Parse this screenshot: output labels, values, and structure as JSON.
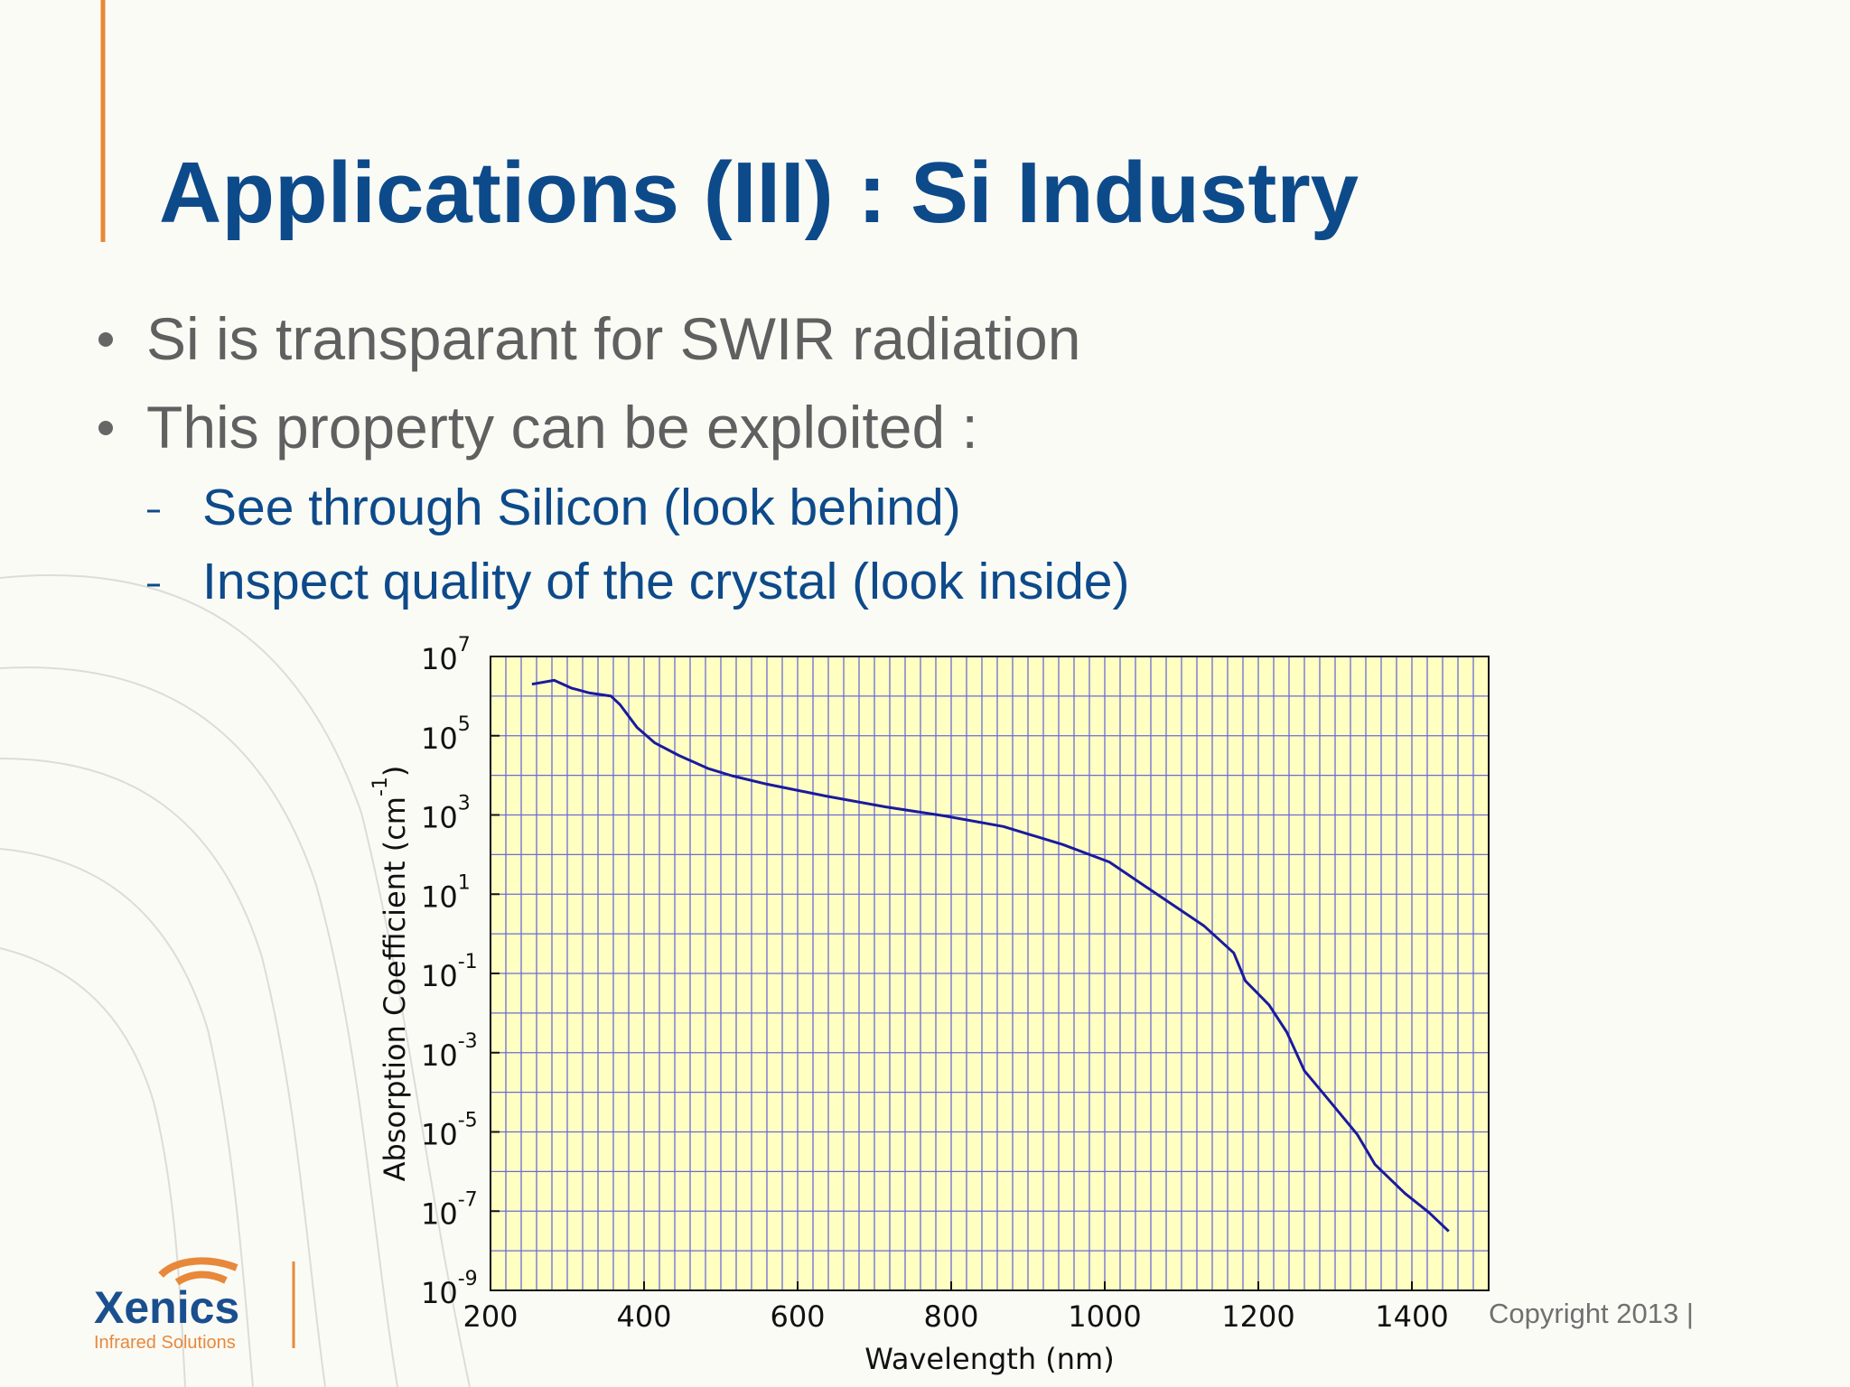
{
  "header": {
    "title": "Applications (III) : Si Industry"
  },
  "bullets": [
    "Si is transparant for SWIR radiation",
    "This property can be exploited :"
  ],
  "sub_bullets": [
    "See through Silicon (look behind)",
    "Inspect quality of the crystal (look inside)"
  ],
  "logo": {
    "name": "Xenics",
    "tagline": "Infrared Solutions"
  },
  "footer": {
    "copyright": "Copyright 2013 |"
  },
  "chart_data": {
    "type": "line",
    "log_y": true,
    "grid": true,
    "xlabel": "Wavelength (nm)",
    "ylabel": {
      "text": "Absorption Coefficient (cm",
      "sup": "-1",
      "end": ")"
    },
    "xlim": [
      200,
      1500
    ],
    "xticks": [
      200,
      400,
      600,
      800,
      1000,
      1200,
      1400
    ],
    "ylim": [
      1e-09,
      10000000.0
    ],
    "yticks": [
      {
        "value": 1e-09,
        "label": "10",
        "sup": "-9"
      },
      {
        "value": 1e-07,
        "label": "10",
        "sup": "-7"
      },
      {
        "value": 1e-05,
        "label": "10",
        "sup": "-5"
      },
      {
        "value": 0.001,
        "label": "10",
        "sup": "-3"
      },
      {
        "value": 0.1,
        "label": "10",
        "sup": "-1"
      },
      {
        "value": 10,
        "label": "10",
        "sup": "1"
      },
      {
        "value": 1000,
        "label": "10",
        "sup": "3"
      },
      {
        "value": 100000,
        "label": "10",
        "sup": "5"
      },
      {
        "value": 10000000,
        "label": "10",
        "sup": "7"
      }
    ],
    "x": [
      254,
      283,
      305,
      329,
      357,
      369,
      391,
      414,
      445,
      483,
      514,
      560,
      637,
      714,
      791,
      868,
      945,
      1006,
      1068,
      1129,
      1168,
      1183,
      1214,
      1237,
      1260,
      1291,
      1329,
      1352,
      1391,
      1422,
      1448
    ],
    "series": [
      {
        "color": "#1a1a9e",
        "values": [
          2000000.0,
          2500000.0,
          1600000.0,
          1200000.0,
          1000000.0,
          600000.0,
          160000.0,
          66000.0,
          32000.0,
          15000.0,
          9800.0,
          6000.0,
          3000.0,
          1600.0,
          950.0,
          510.0,
          180.0,
          65,
          10,
          1.6,
          0.33,
          0.065,
          0.016,
          0.0033,
          0.00035,
          6.7e-05,
          8.5e-06,
          1.5e-06,
          2.8e-07,
          9.3e-08,
          3.1e-08
        ]
      }
    ]
  }
}
